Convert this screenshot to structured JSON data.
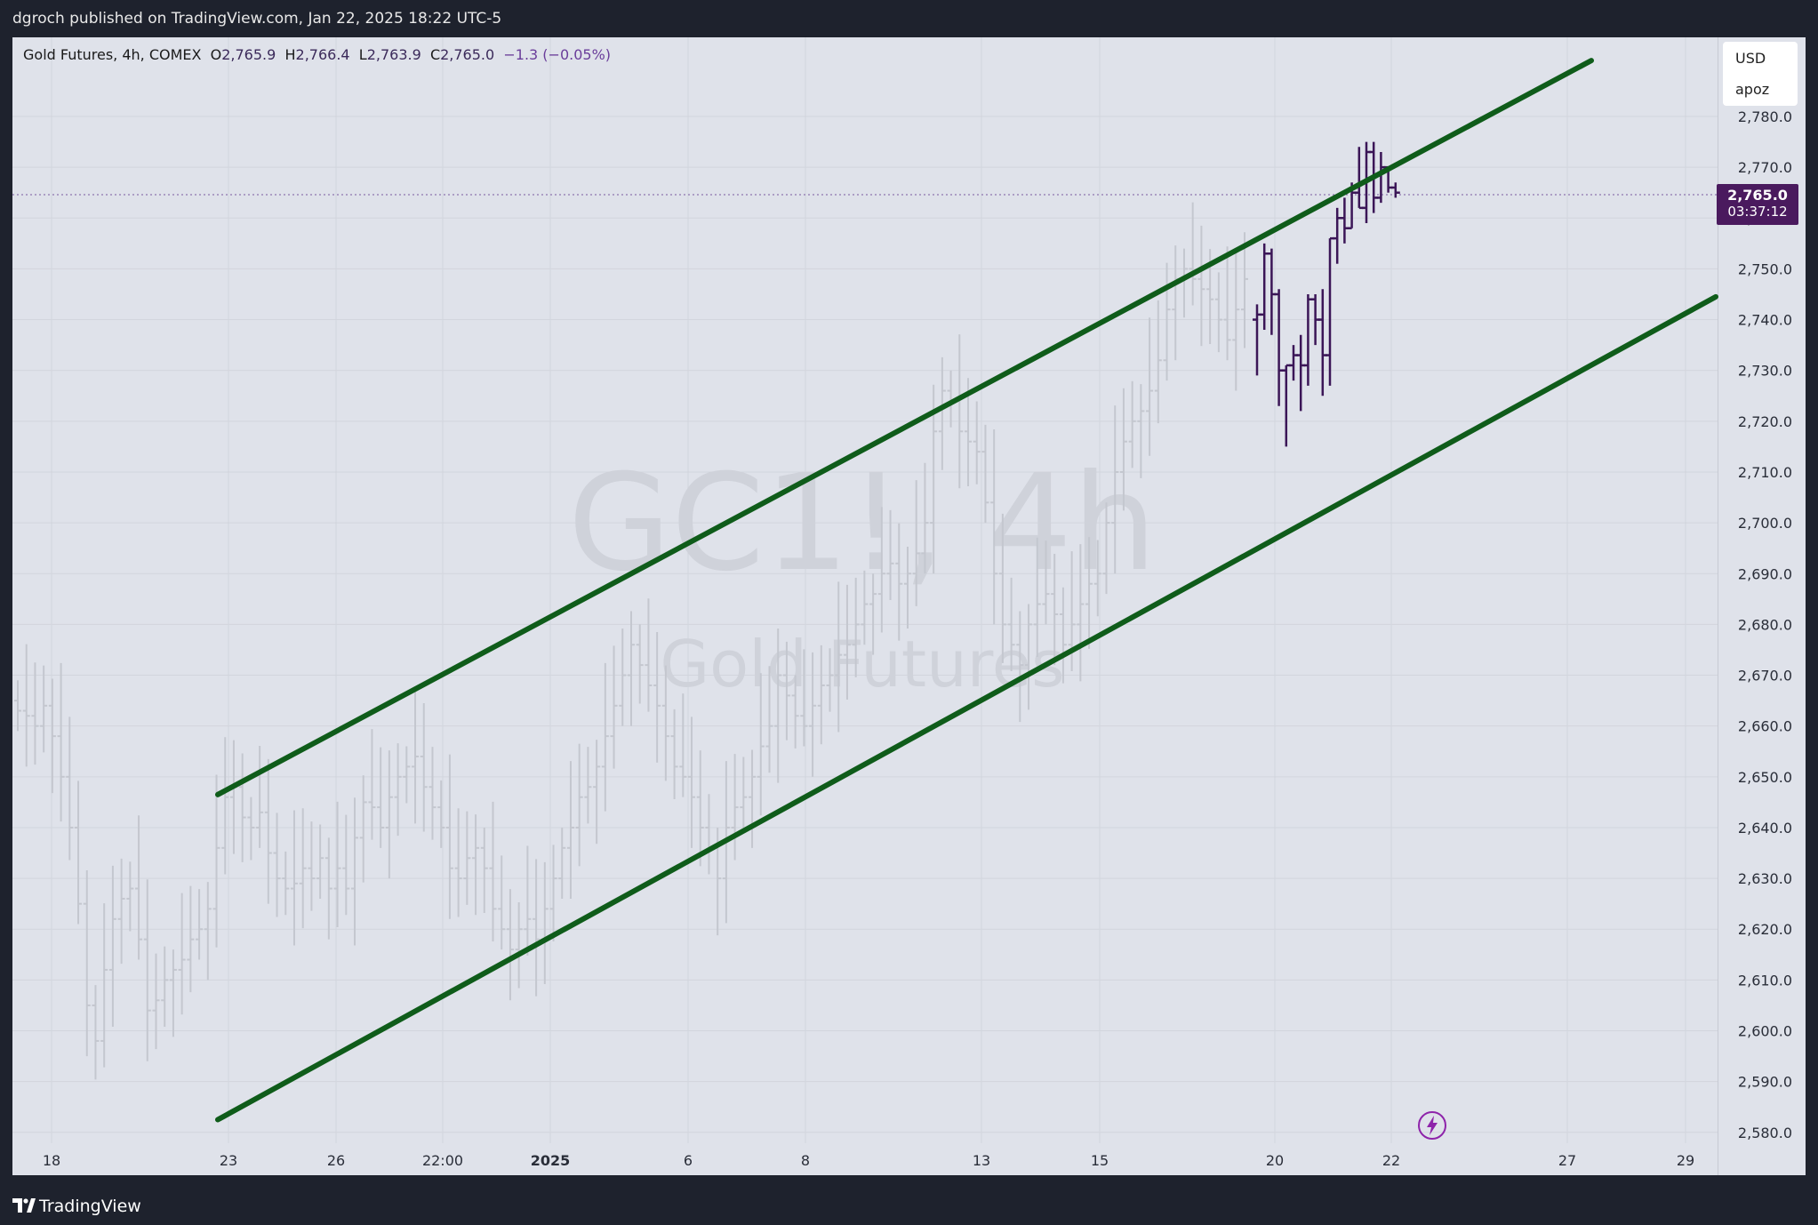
{
  "header": {
    "published_text": "dgroch published on TradingView.com, Jan 22, 2025 18:22 UTC-5"
  },
  "legend": {
    "symbol": "Gold Futures, 4h, COMEX",
    "open_label": "O",
    "open": "2,765.9",
    "high_label": "H",
    "high": "2,766.4",
    "low_label": "L",
    "low": "2,763.9",
    "close_label": "C",
    "close": "2,765.0",
    "change": "−1.3 (−0.05%)"
  },
  "watermark": {
    "ticker": "GC1!, 4h",
    "name": "Gold Futures"
  },
  "price_scale": {
    "currency": "USD",
    "unit": "apoz"
  },
  "last_price": {
    "price": "2,765.0",
    "countdown": "03:37:12"
  },
  "footer": {
    "brand": "TradingView"
  },
  "icons": {
    "logo": "tradingview-logo-icon",
    "flash": "flash-icon"
  },
  "colors": {
    "chart_bg": "#dfe2ea",
    "frame_bg": "#1e222d",
    "faded_bars": "#c4c7cf",
    "recent_bars": "#3b1657",
    "channel_lines": "#0f5c1a",
    "last_price_tag": "#4a1a5e"
  },
  "chart_data": {
    "type": "ohlc",
    "y_axis": {
      "min": 2580,
      "max": 2780,
      "step": 10,
      "tick_labels": [
        "2,780.0",
        "2,770.0",
        "2,760.0",
        "2,750.0",
        "2,740.0",
        "2,730.0",
        "2,720.0",
        "2,710.0",
        "2,700.0",
        "2,690.0",
        "2,680.0",
        "2,670.0",
        "2,660.0",
        "2,650.0",
        "2,640.0",
        "2,630.0",
        "2,620.0",
        "2,610.0",
        "2,600.0",
        "2,590.0",
        "2,580.0"
      ]
    },
    "x_axis": {
      "ticks": [
        {
          "label": "18",
          "bold": false
        },
        {
          "label": "23",
          "bold": false
        },
        {
          "label": "26",
          "bold": false
        },
        {
          "label": "22:00",
          "bold": false
        },
        {
          "label": "2025",
          "bold": true
        },
        {
          "label": "6",
          "bold": false
        },
        {
          "label": "8",
          "bold": false
        },
        {
          "label": "13",
          "bold": false
        },
        {
          "label": "15",
          "bold": false
        },
        {
          "label": "20",
          "bold": false
        },
        {
          "label": "22",
          "bold": false
        },
        {
          "label": "27",
          "bold": false
        },
        {
          "label": "29",
          "bold": false
        }
      ]
    },
    "channel": {
      "upper": {
        "start": 2646.5,
        "end": 2791
      },
      "lower": {
        "start": 2582.5,
        "end": 2744.5
      }
    },
    "historical_path": [
      2663,
      2662,
      2660,
      2664,
      2658,
      2650,
      2640,
      2625,
      2605,
      2598,
      2612,
      2622,
      2626,
      2628,
      2618,
      2604,
      2606,
      2610,
      2612,
      2614,
      2618,
      2620,
      2624,
      2636,
      2646,
      2648,
      2642,
      2640,
      2643,
      2635,
      2630,
      2628,
      2629,
      2632,
      2630,
      2634,
      2628,
      2632,
      2628,
      2638,
      2645,
      2644,
      2640,
      2646,
      2650,
      2652,
      2654,
      2648,
      2644,
      2640,
      2632,
      2630,
      2634,
      2636,
      2632,
      2624,
      2620,
      2616,
      2620,
      2622,
      2618,
      2624,
      2630,
      2636,
      2640,
      2646,
      2648,
      2652,
      2658,
      2664,
      2670,
      2676,
      2672,
      2668,
      2664,
      2658,
      2652,
      2650,
      2646,
      2640,
      2636,
      2630,
      2640,
      2644,
      2646,
      2650,
      2656,
      2660,
      2670,
      2666,
      2662,
      2660,
      2664,
      2668,
      2670,
      2674,
      2676,
      2680,
      2684,
      2686,
      2690,
      2692,
      2688,
      2690,
      2694,
      2700,
      2718,
      2726,
      2724,
      2718,
      2716,
      2714,
      2704,
      2690,
      2680,
      2676,
      2672,
      2680,
      2684,
      2686,
      2682,
      2676,
      2680,
      2684,
      2688,
      2690,
      2700,
      2710,
      2716,
      2720,
      2722,
      2726,
      2732,
      2742,
      2748,
      2750,
      2748,
      2746,
      2744,
      2740,
      2736,
      2742,
      2748
    ]
  }
}
